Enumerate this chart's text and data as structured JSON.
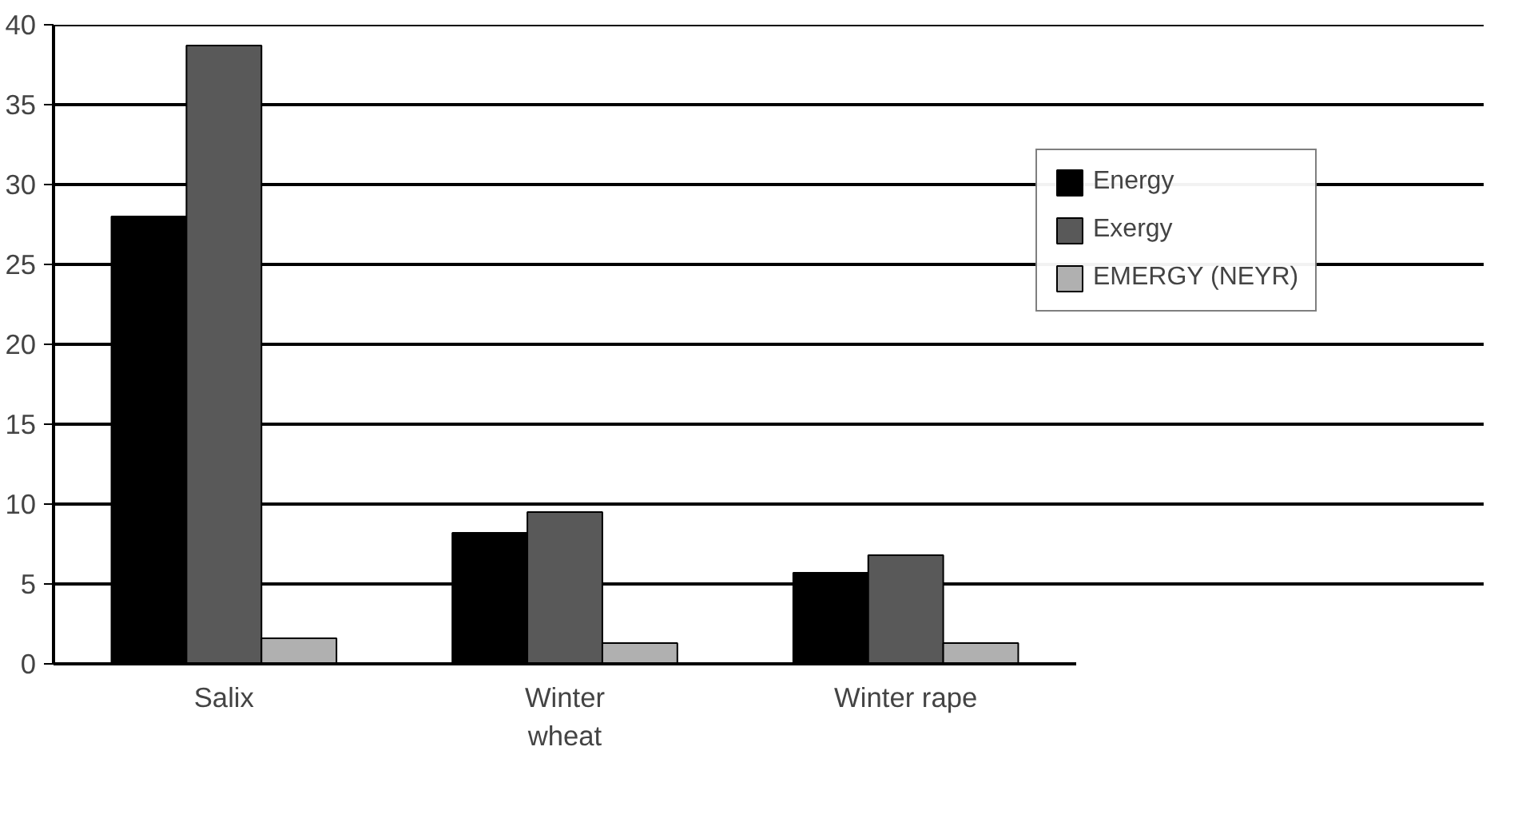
{
  "chart_data": {
    "type": "bar",
    "categories": [
      "Salix",
      "Winter wheat",
      "Winter rape"
    ],
    "series": [
      {
        "name": "Energy",
        "color": "#000000",
        "values": [
          28,
          8.2,
          5.7
        ]
      },
      {
        "name": "Exergy",
        "color": "#595959",
        "values": [
          38.7,
          9.5,
          6.8
        ]
      },
      {
        "name": "EMERGY (NEYR)",
        "color": "#b0b0b0",
        "values": [
          1.6,
          1.3,
          1.3
        ]
      }
    ],
    "ylim": [
      0,
      40
    ],
    "yticks": [
      0,
      5,
      10,
      15,
      20,
      25,
      30,
      35,
      40
    ],
    "grid": "y",
    "legend": "right"
  }
}
